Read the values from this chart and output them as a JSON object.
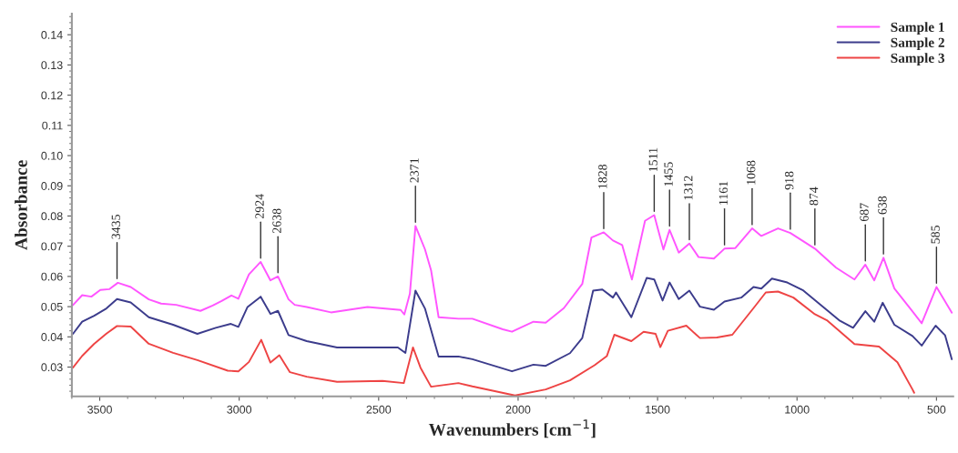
{
  "chart_data": {
    "type": "line",
    "xlabel": "Wavenumbers [cm$^{−1}$]",
    "ylabel": "Absorbance",
    "xlim": [
      3600,
      440
    ],
    "ylim": [
      0.0203,
      0.147
    ],
    "xticks": [
      3500,
      3000,
      2500,
      2000,
      1500,
      1000,
      500
    ],
    "yticks": [
      {
        "value": 0.03,
        "label": "0.03"
      },
      {
        "value": 0.04,
        "label": "0.04"
      },
      {
        "value": 0.05,
        "label": "0.05"
      },
      {
        "value": 0.06,
        "label": "0.06"
      },
      {
        "value": 0.07,
        "label": "0.07"
      },
      {
        "value": 0.08,
        "label": "0.08"
      },
      {
        "value": 0.09,
        "label": "0.09"
      },
      {
        "value": 0.1,
        "label": "0.10"
      },
      {
        "value": 0.11,
        "label": "0.11"
      },
      {
        "value": 0.12,
        "label": "0.12"
      },
      {
        "value": 0.13,
        "label": "0.13"
      },
      {
        "value": 0.14,
        "label": "0.14"
      }
    ],
    "legend": "top right",
    "grid": false,
    "line_style": "solid",
    "marker": "none",
    "series": [
      {
        "name": "Sample 1",
        "color": "#ff55ff",
        "x": [
          3596,
          3563,
          3530,
          3498,
          3465,
          3435,
          3389,
          3324,
          3280,
          3226,
          3139,
          3095,
          3063,
          3028,
          3003,
          2965,
          2923,
          2888,
          2861,
          2823,
          2801,
          2758,
          2671,
          2540,
          2421,
          2408,
          2388,
          2368,
          2334,
          2312,
          2285,
          2214,
          2164,
          2055,
          2022,
          1945,
          1901,
          1836,
          1770,
          1737,
          1693,
          1660,
          1627,
          1592,
          1545,
          1512,
          1479,
          1457,
          1424,
          1386,
          1353,
          1298,
          1260,
          1221,
          1161,
          1128,
          1068,
          1024,
          936,
          860,
          794,
          755,
          723,
          690,
          651,
          591,
          553,
          500,
          445
        ],
        "values": [
          0.0505,
          0.0538,
          0.0533,
          0.0555,
          0.0558,
          0.0579,
          0.0565,
          0.0524,
          0.051,
          0.0506,
          0.0486,
          0.0504,
          0.0519,
          0.0537,
          0.0526,
          0.0607,
          0.0648,
          0.0587,
          0.06,
          0.0524,
          0.0506,
          0.0499,
          0.0481,
          0.0499,
          0.0489,
          0.0474,
          0.0543,
          0.0767,
          0.069,
          0.062,
          0.0465,
          0.046,
          0.046,
          0.0425,
          0.0417,
          0.045,
          0.0447,
          0.0495,
          0.0575,
          0.0729,
          0.0746,
          0.0719,
          0.0704,
          0.059,
          0.0784,
          0.0803,
          0.0689,
          0.0754,
          0.0679,
          0.0709,
          0.0664,
          0.0659,
          0.0692,
          0.0694,
          0.0759,
          0.0734,
          0.0759,
          0.0744,
          0.0692,
          0.0629,
          0.059,
          0.0639,
          0.0587,
          0.0662,
          0.056,
          0.049,
          0.0445,
          0.0565,
          0.048
        ]
      },
      {
        "name": "Sample 2",
        "color": "#3c3c8c",
        "x": [
          3596,
          3563,
          3520,
          3476,
          3438,
          3389,
          3324,
          3237,
          3150,
          3084,
          3030,
          3003,
          2970,
          2923,
          2888,
          2861,
          2823,
          2758,
          2649,
          2431,
          2404,
          2368,
          2334,
          2285,
          2214,
          2164,
          2022,
          1945,
          1901,
          1814,
          1770,
          1731,
          1698,
          1660,
          1649,
          1594,
          1539,
          1512,
          1482,
          1457,
          1424,
          1386,
          1348,
          1298,
          1260,
          1200,
          1156,
          1128,
          1090,
          1035,
          980,
          914,
          849,
          799,
          755,
          723,
          693,
          651,
          586,
          553,
          503,
          469,
          445
        ],
        "values": [
          0.041,
          0.045,
          0.047,
          0.0494,
          0.0525,
          0.0514,
          0.0465,
          0.044,
          0.041,
          0.043,
          0.0443,
          0.0433,
          0.0499,
          0.0533,
          0.0476,
          0.0486,
          0.0406,
          0.0386,
          0.0365,
          0.0365,
          0.0347,
          0.0553,
          0.0494,
          0.0335,
          0.0335,
          0.0326,
          0.0286,
          0.0308,
          0.0304,
          0.0346,
          0.0396,
          0.0553,
          0.0557,
          0.053,
          0.0547,
          0.0465,
          0.0595,
          0.059,
          0.052,
          0.058,
          0.0525,
          0.0553,
          0.05,
          0.049,
          0.0517,
          0.053,
          0.0565,
          0.056,
          0.0593,
          0.058,
          0.0555,
          0.0505,
          0.0455,
          0.043,
          0.0485,
          0.045,
          0.0513,
          0.044,
          0.0403,
          0.0371,
          0.0437,
          0.0405,
          0.0326
        ]
      },
      {
        "name": "Sample 3",
        "color": "#ee4444",
        "x": [
          3596,
          3563,
          3520,
          3476,
          3438,
          3389,
          3324,
          3237,
          3150,
          3041,
          3003,
          2965,
          2921,
          2888,
          2856,
          2818,
          2758,
          2649,
          2486,
          2410,
          2377,
          2350,
          2312,
          2214,
          2164,
          2011,
          1901,
          1814,
          1726,
          1682,
          1655,
          1594,
          1550,
          1507,
          1490,
          1463,
          1397,
          1348,
          1287,
          1232,
          1156,
          1112,
          1068,
          1013,
          936,
          893,
          794,
          706,
          640,
          586,
          580
        ],
        "values": [
          0.0298,
          0.0337,
          0.0377,
          0.0411,
          0.0436,
          0.0434,
          0.0377,
          0.0347,
          0.0323,
          0.0288,
          0.0286,
          0.0317,
          0.039,
          0.0315,
          0.0339,
          0.0283,
          0.0268,
          0.0251,
          0.0254,
          0.0247,
          0.0365,
          0.0298,
          0.0235,
          0.0247,
          0.0236,
          0.0206,
          0.0226,
          0.0256,
          0.0306,
          0.0336,
          0.0407,
          0.0386,
          0.0417,
          0.041,
          0.0366,
          0.042,
          0.0437,
          0.0396,
          0.0398,
          0.0407,
          0.0495,
          0.0547,
          0.055,
          0.053,
          0.0475,
          0.0455,
          0.0376,
          0.0368,
          0.0316,
          0.0226,
          0.0215
        ]
      }
    ],
    "annotations": [
      {
        "text": "3435",
        "x": 3438,
        "y": 0.058
      },
      {
        "text": "2924",
        "x": 2923,
        "y": 0.0648
      },
      {
        "text": "2638",
        "x": 2861,
        "y": 0.06
      },
      {
        "text": "2371",
        "x": 2368,
        "y": 0.0767
      },
      {
        "text": "1828",
        "x": 1693,
        "y": 0.0746
      },
      {
        "text": "1511",
        "x": 1512,
        "y": 0.0803
      },
      {
        "text": "1455",
        "x": 1457,
        "y": 0.0754
      },
      {
        "text": "1312",
        "x": 1386,
        "y": 0.0709
      },
      {
        "text": "1161",
        "x": 1260,
        "y": 0.0692
      },
      {
        "text": "1068",
        "x": 1161,
        "y": 0.0759
      },
      {
        "text": "918",
        "x": 1024,
        "y": 0.0744
      },
      {
        "text": "874",
        "x": 936,
        "y": 0.0692
      },
      {
        "text": "687",
        "x": 755,
        "y": 0.0639
      },
      {
        "text": "638",
        "x": 690,
        "y": 0.0662
      },
      {
        "text": "585",
        "x": 500,
        "y": 0.0565
      }
    ]
  }
}
